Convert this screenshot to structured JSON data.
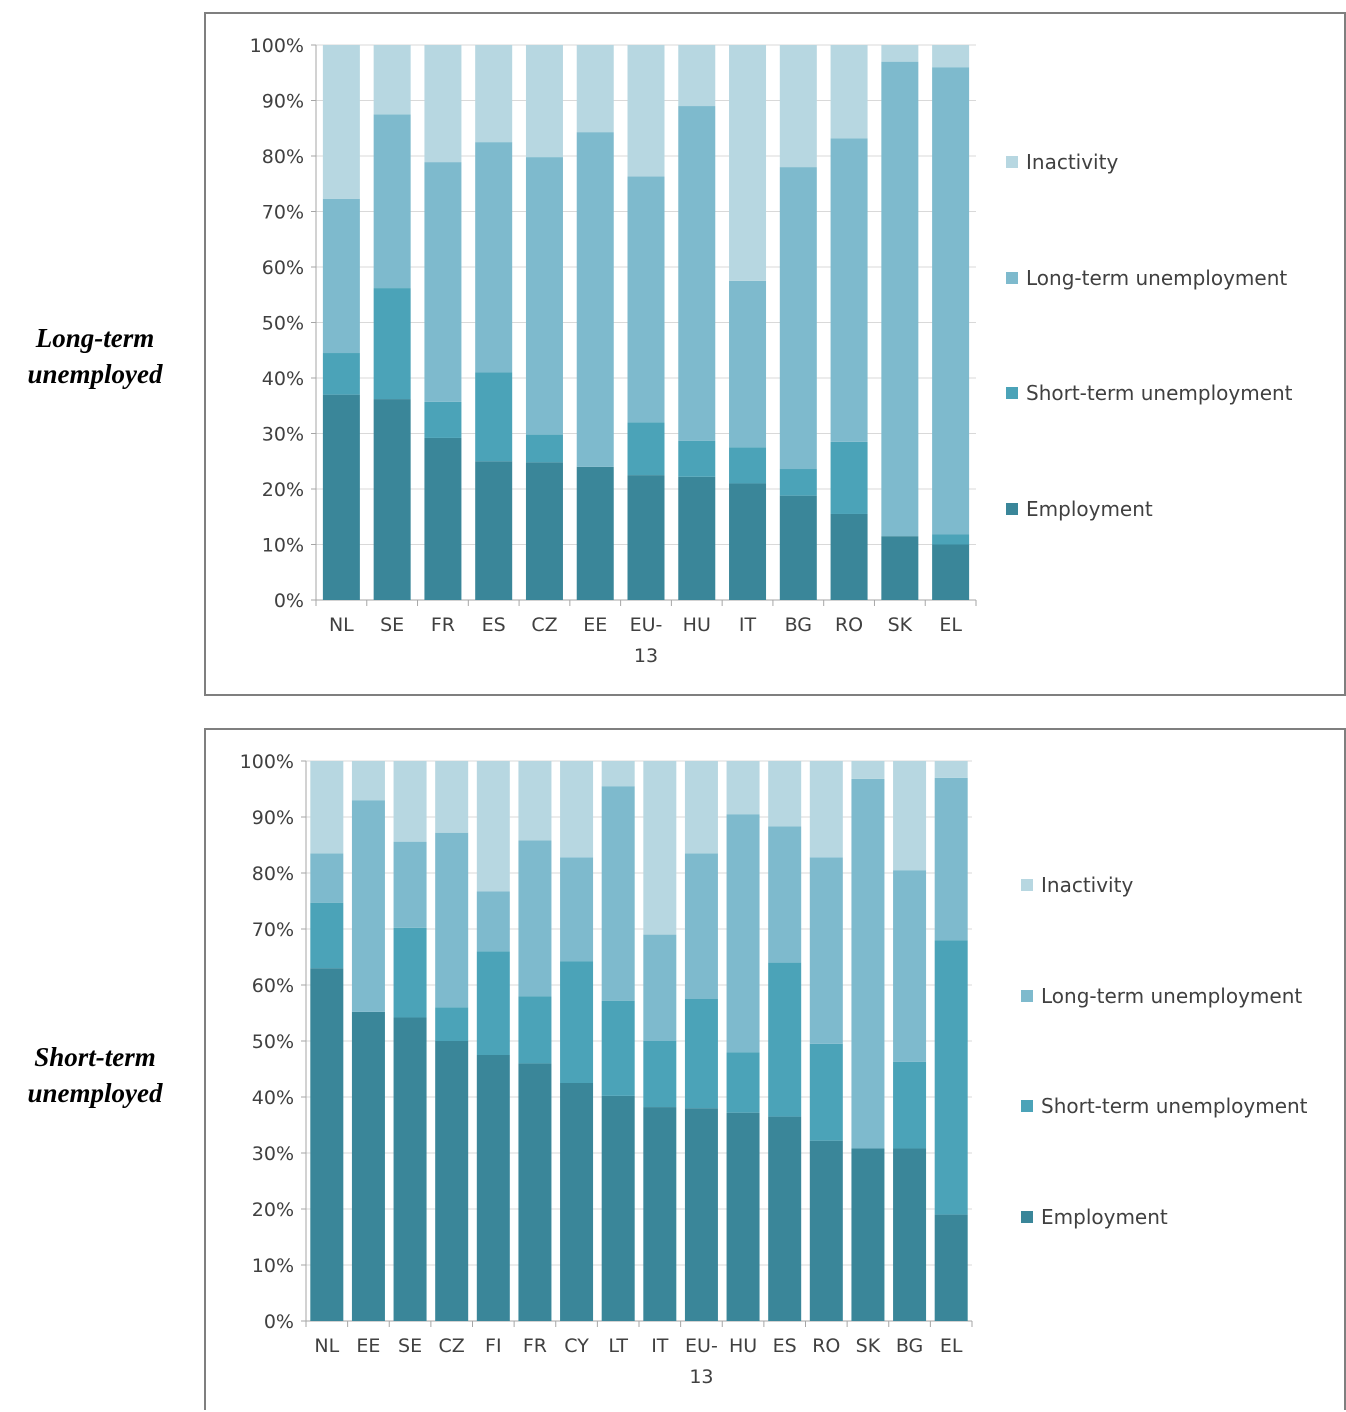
{
  "row_labels": {
    "top": [
      "Long-term",
      "unemployed"
    ],
    "bottom": [
      "Short-term",
      "unemployed"
    ]
  },
  "colors": {
    "Employment": "#3a8699",
    "Short-term unemployment": "#4ba3b8",
    "Long-term unemployment": "#7ebacd",
    "Inactivity": "#b7d7e1"
  },
  "chart_data": [
    {
      "type": "bar",
      "stacked": true,
      "percent": true,
      "title": "",
      "ylim": [
        0,
        100
      ],
      "yticks": [
        "0%",
        "10%",
        "20%",
        "30%",
        "40%",
        "50%",
        "60%",
        "70%",
        "80%",
        "90%",
        "100%"
      ],
      "categories": [
        "NL",
        "SE",
        "FR",
        "ES",
        "CZ",
        "EE",
        "EU-13",
        "HU",
        "IT",
        "BG",
        "RO",
        "SK",
        "EL"
      ],
      "legend_order": [
        "Inactivity",
        "Long-term unemployment",
        "Short-term unemployment",
        "Employment"
      ],
      "legend_position": "right",
      "series": [
        {
          "name": "Employment",
          "values": [
            37,
            36.2,
            29.2,
            25,
            24.8,
            24,
            22.5,
            22.2,
            21,
            18.8,
            15.5,
            11.5,
            10
          ]
        },
        {
          "name": "Short-term unemployment",
          "values": [
            7.5,
            20,
            6.5,
            16,
            5,
            0,
            9.5,
            6.5,
            6.5,
            4.8,
            13,
            0,
            1.8
          ]
        },
        {
          "name": "Long-term unemployment",
          "values": [
            27.8,
            31.3,
            43.2,
            41.5,
            50,
            60.3,
            44.3,
            60.3,
            30,
            54.4,
            54.7,
            85.5,
            84.2
          ]
        },
        {
          "name": "Inactivity",
          "values": [
            27.7,
            12.5,
            21.1,
            17.5,
            20.2,
            15.7,
            23.7,
            11,
            42.5,
            22,
            16.8,
            3,
            4
          ]
        }
      ]
    },
    {
      "type": "bar",
      "stacked": true,
      "percent": true,
      "title": "",
      "ylim": [
        0,
        100
      ],
      "yticks": [
        "0%",
        "10%",
        "20%",
        "30%",
        "40%",
        "50%",
        "60%",
        "70%",
        "80%",
        "90%",
        "100%"
      ],
      "categories": [
        "NL",
        "EE",
        "SE",
        "CZ",
        "FI",
        "FR",
        "CY",
        "LT",
        "IT",
        "EU-13",
        "HU",
        "ES",
        "RO",
        "SK",
        "BG",
        "EL"
      ],
      "legend_order": [
        "Inactivity",
        "Long-term unemployment",
        "Short-term unemployment",
        "Employment"
      ],
      "legend_position": "right",
      "series": [
        {
          "name": "Employment",
          "values": [
            63,
            55.2,
            54.2,
            50,
            47.5,
            46,
            42.5,
            40.2,
            38.2,
            38,
            37.2,
            36.5,
            32.2,
            30.8,
            30.8,
            19
          ]
        },
        {
          "name": "Short-term unemployment",
          "values": [
            11.7,
            0,
            16,
            6,
            18.5,
            12,
            21.7,
            17,
            11.8,
            19.5,
            10.8,
            27.5,
            17.3,
            0,
            15.5,
            49
          ]
        },
        {
          "name": "Long-term unemployment",
          "values": [
            8.8,
            37.8,
            15.4,
            31.2,
            10.7,
            27.8,
            18.6,
            38.3,
            19,
            26,
            42.5,
            24.3,
            33.3,
            66,
            34.2,
            29
          ]
        },
        {
          "name": "Inactivity",
          "values": [
            16.5,
            7,
            14.4,
            12.8,
            23.3,
            14.2,
            17.2,
            4.5,
            31,
            16.5,
            9.5,
            11.7,
            17.2,
            3.2,
            19.5,
            3
          ]
        }
      ]
    }
  ]
}
